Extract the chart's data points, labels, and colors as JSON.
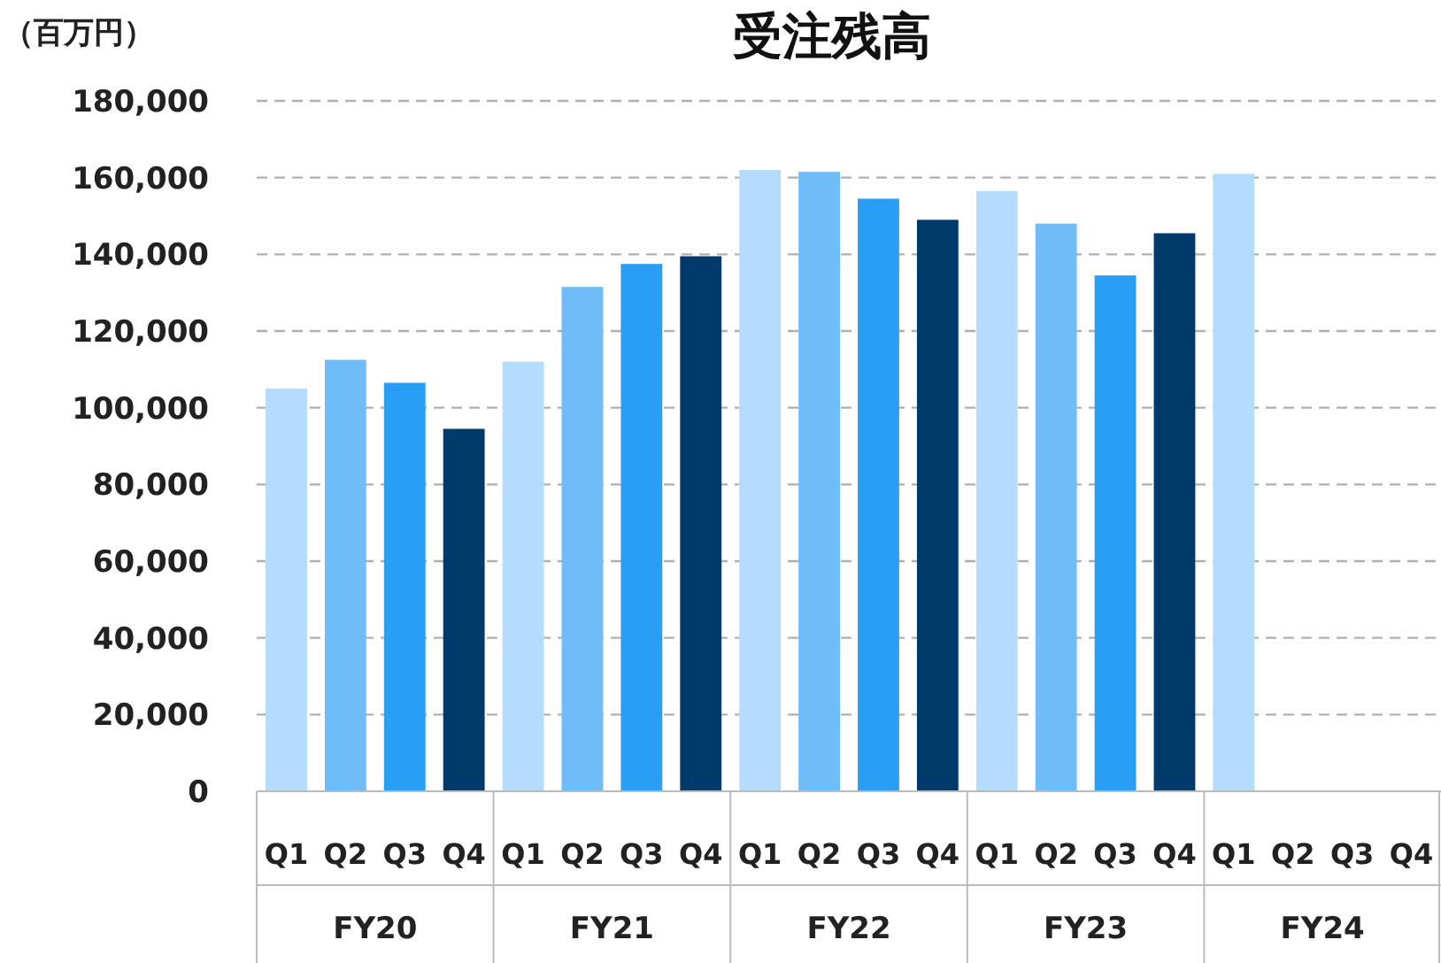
{
  "chart_data": {
    "type": "bar",
    "title": "受注残高",
    "ylabel": "（百万円）",
    "categories": [
      "FY20",
      "FY21",
      "FY22",
      "FY23",
      "FY24"
    ],
    "series": [
      {
        "name": "Q1",
        "color": "#b3dcff",
        "values": [
          105000,
          112000,
          162000,
          156500,
          161000
        ]
      },
      {
        "name": "Q2",
        "color": "#6fbdf8",
        "values": [
          112500,
          131500,
          161500,
          148000,
          null
        ]
      },
      {
        "name": "Q3",
        "color": "#2a9df4",
        "values": [
          106500,
          137500,
          154500,
          134500,
          null
        ]
      },
      {
        "name": "Q4",
        "color": "#003a6b",
        "values": [
          94500,
          139500,
          149000,
          145500,
          null
        ]
      }
    ],
    "ylim": [
      0,
      180000
    ],
    "yticks": [
      0,
      {
        "value": 20000,
        "label": "20,000"
      },
      {
        "value": 40000,
        "label": "40,000"
      },
      {
        "value": 60000,
        "label": "60,000"
      },
      {
        "value": 80000,
        "label": "80,000"
      },
      {
        "value": 100000,
        "label": "100,000"
      },
      {
        "value": 120000,
        "label": "120,000"
      },
      {
        "value": 140000,
        "label": "140,000"
      },
      {
        "value": 160000,
        "label": "160,000"
      },
      {
        "value": 180000,
        "label": "180,000"
      }
    ],
    "grid": "y"
  }
}
